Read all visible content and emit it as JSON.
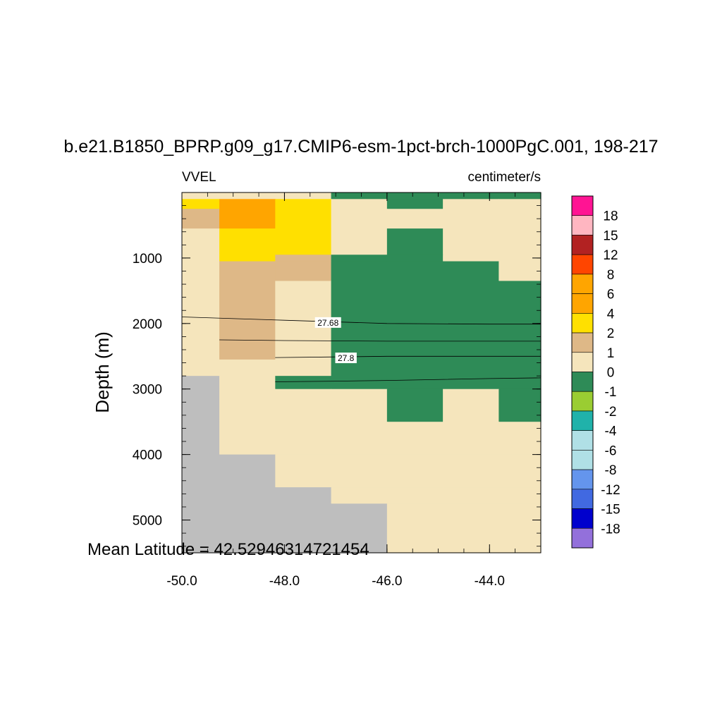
{
  "chart_data": {
    "type": "heatmap",
    "title": "b.e21.B1850_BPRP.g09_g17.CMIP6-esm-1pct-brch-1000PgC.001, 198-217",
    "left_subtitle": "VVEL",
    "right_subtitle": "centimeter/s",
    "ylabel": "Depth (m)",
    "xlabel": "",
    "annotation": "Mean Latitude = 42.52946314721454",
    "xlim": [
      -50.0,
      -43.0
    ],
    "ylim": [
      0,
      5500
    ],
    "y_reversed": true,
    "grid": false,
    "x_ticks": [
      -50.0,
      -48.0,
      -46.0,
      -44.0
    ],
    "x_tick_labels": [
      "-50.0",
      "-48.0",
      "-46.0",
      "-44.0"
    ],
    "y_ticks": [
      1000,
      2000,
      3000,
      4000,
      5000
    ],
    "y_tick_labels": [
      "1000",
      "2000",
      "3000",
      "4000",
      "5000"
    ],
    "x_edges": [
      -50.0,
      -49.27,
      -48.18,
      -47.09,
      -46.0,
      -44.91,
      -43.82,
      -43.0
    ],
    "y_edges": [
      0,
      100,
      250,
      550,
      950,
      1050,
      1350,
      2550,
      2800,
      3000,
      3500,
      4000,
      4500,
      4750,
      5500
    ],
    "category_colors": {
      "land": "#bebebe",
      "-1_0": "#2e8b57",
      "0_1": "#f5e5bc",
      "1_2": "#deb887",
      "2_4": "#ffe000",
      "4_6": "#ffa500",
      "6_8": "#ffa500"
    },
    "cells": [
      [
        "0_1",
        "0_1",
        "0_1",
        "-1_0",
        "-1_0",
        "-1_0",
        "-1_0"
      ],
      [
        "2_4",
        "4_6",
        "2_4",
        "0_1",
        "-1_0",
        "0_1",
        "0_1"
      ],
      [
        "1_2",
        "4_6",
        "2_4",
        "0_1",
        "0_1",
        "0_1",
        "0_1"
      ],
      [
        "0_1",
        "2_4",
        "2_4",
        "0_1",
        "-1_0",
        "0_1",
        "0_1"
      ],
      [
        "0_1",
        "2_4",
        "1_2",
        "-1_0",
        "-1_0",
        "0_1",
        "0_1"
      ],
      [
        "0_1",
        "1_2",
        "1_2",
        "-1_0",
        "-1_0",
        "-1_0",
        "0_1"
      ],
      [
        "0_1",
        "1_2",
        "0_1",
        "-1_0",
        "-1_0",
        "-1_0",
        "-1_0"
      ],
      [
        "0_1",
        "0_1",
        "0_1",
        "-1_0",
        "-1_0",
        "-1_0",
        "-1_0"
      ],
      [
        "land",
        "0_1",
        "-1_0",
        "-1_0",
        "-1_0",
        "-1_0",
        "-1_0"
      ],
      [
        "land",
        "0_1",
        "0_1",
        "0_1",
        "-1_0",
        "0_1",
        "-1_0"
      ],
      [
        "land",
        "0_1",
        "0_1",
        "0_1",
        "0_1",
        "0_1",
        "0_1"
      ],
      [
        "land",
        "land",
        "0_1",
        "0_1",
        "0_1",
        "0_1",
        "0_1"
      ],
      [
        "land",
        "land",
        "land",
        "0_1",
        "0_1",
        "0_1",
        "0_1"
      ],
      [
        "land",
        "land",
        "land",
        "land",
        "0_1",
        "0_1",
        "0_1"
      ]
    ],
    "contours": [
      {
        "label": "27.68",
        "points": [
          [
            -50.0,
            1900
          ],
          [
            -48.0,
            1950
          ],
          [
            -46.0,
            2000
          ],
          [
            -44.0,
            2010
          ],
          [
            -43.0,
            2010
          ]
        ]
      },
      {
        "label": "",
        "points": [
          [
            -49.27,
            2250
          ],
          [
            -48.0,
            2260
          ],
          [
            -46.0,
            2270
          ],
          [
            -44.0,
            2270
          ],
          [
            -43.0,
            2270
          ]
        ]
      },
      {
        "label": "27.8",
        "points": [
          [
            -48.18,
            2520
          ],
          [
            -47.0,
            2510
          ],
          [
            -46.0,
            2500
          ],
          [
            -44.0,
            2500
          ],
          [
            -43.0,
            2500
          ]
        ]
      },
      {
        "label": "",
        "points": [
          [
            -48.18,
            2890
          ],
          [
            -47.0,
            2880
          ],
          [
            -46.0,
            2870
          ],
          [
            -44.0,
            2840
          ],
          [
            -43.0,
            2830
          ]
        ]
      }
    ],
    "contour_label_positions": [
      [
        -47.15,
        1990
      ],
      [
        -46.8,
        2530
      ]
    ],
    "colorbar": {
      "colors": [
        "#ff1493",
        "#ffb6c1",
        "#b22222",
        "#ff4500",
        "#ffa500",
        "#ffa500",
        "#ffe000",
        "#deb887",
        "#f5e5bc",
        "#2e8b57",
        "#9acd32",
        "#20b2aa",
        "#b0e0e6",
        "#b0e0e6",
        "#6495ed",
        "#4169e1",
        "#0000cd",
        "#9370db"
      ],
      "labels": [
        "18",
        "15",
        "12",
        "8",
        "6",
        "4",
        "2",
        "1",
        "0",
        "-1",
        "-2",
        "-4",
        "-6",
        "-8",
        "-12",
        "-15",
        "-18"
      ]
    }
  }
}
